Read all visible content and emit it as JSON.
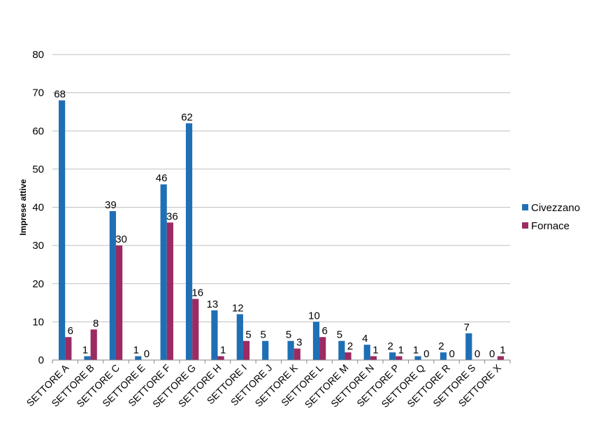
{
  "chart_data": {
    "type": "bar",
    "title": "",
    "xlabel": "",
    "ylabel": "Imprese attive",
    "ylim": [
      0,
      80
    ],
    "yticks": [
      0,
      10,
      20,
      30,
      40,
      50,
      60,
      70,
      80
    ],
    "grid": true,
    "legend_position": "right",
    "categories": [
      "SETTORE A",
      "SETTORE B",
      "SETTORE C",
      "SETTORE E",
      "SETTORE F",
      "SETTORE G",
      "SETTORE H",
      "SETTORE I",
      "SETTORE J",
      "SETTORE K",
      "SETTORE L",
      "SETTORE M",
      "SETTORE N",
      "SETTORE P",
      "SETTORE Q",
      "SETTORE R",
      "SETTORE S",
      "SETTORE X"
    ],
    "series": [
      {
        "name": "Civezzano",
        "color": "#1f6fb5",
        "values": [
          68,
          1,
          39,
          1,
          46,
          62,
          13,
          12,
          5,
          5,
          10,
          5,
          4,
          2,
          1,
          2,
          7,
          0
        ],
        "labels": [
          "68",
          "1",
          "39",
          "1",
          "46",
          "62",
          "13",
          "12",
          "5",
          "5",
          "10",
          "5",
          "4",
          "2",
          "1",
          "2",
          "7",
          "0"
        ]
      },
      {
        "name": "Fornace",
        "color": "#9c2a63",
        "values": [
          6,
          8,
          30,
          0,
          36,
          16,
          1,
          5,
          null,
          3,
          6,
          2,
          1,
          1,
          0,
          0,
          0,
          1
        ],
        "labels": [
          "6",
          "8",
          "30",
          "0",
          "36",
          "16",
          "1",
          "5",
          "",
          "3",
          "6",
          "2",
          "1",
          "1",
          "0",
          "0",
          "0",
          "1"
        ]
      }
    ]
  }
}
